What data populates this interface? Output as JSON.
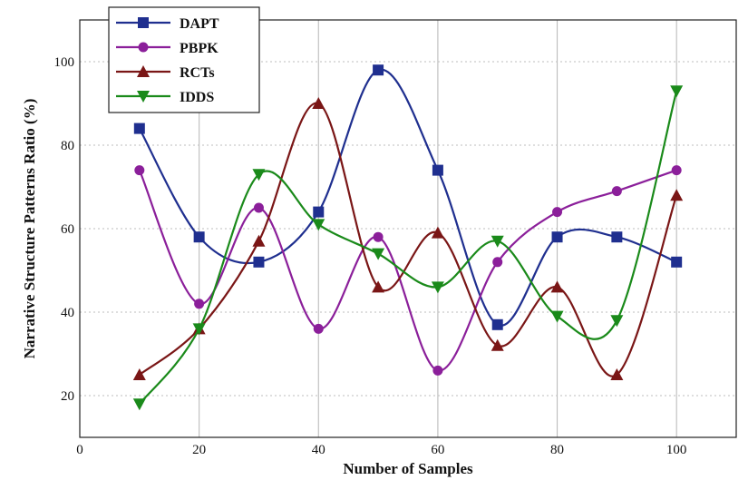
{
  "chart_data": {
    "type": "line",
    "xlabel": "Number of Samples",
    "ylabel": "Narrative Structure Patterns Ratio (%)",
    "xlim": [
      0,
      110
    ],
    "ylim": [
      10,
      110
    ],
    "xticks": [
      0,
      20,
      40,
      60,
      80,
      100
    ],
    "yticks": [
      20,
      40,
      60,
      80,
      100
    ],
    "grid": true,
    "smooth": true,
    "legend_position": "top-left",
    "x": [
      10,
      20,
      30,
      40,
      50,
      60,
      70,
      80,
      90,
      100
    ],
    "series": [
      {
        "name": "DAPT",
        "color": "#1f2f8f",
        "marker": "square",
        "values": [
          84,
          58,
          52,
          64,
          98,
          74,
          37,
          58,
          58,
          52
        ]
      },
      {
        "name": "PBPK",
        "color": "#8b1f9a",
        "marker": "circle",
        "values": [
          74,
          42,
          65,
          36,
          58,
          26,
          52,
          64,
          69,
          74
        ]
      },
      {
        "name": "RCTs",
        "color": "#7a1616",
        "marker": "triangle-up",
        "values": [
          25,
          36,
          57,
          90,
          46,
          59,
          32,
          46,
          25,
          68
        ]
      },
      {
        "name": "IDDS",
        "color": "#1a8a1a",
        "marker": "triangle-down",
        "values": [
          18,
          36,
          73,
          61,
          54,
          46,
          57,
          39,
          38,
          93
        ]
      }
    ]
  }
}
